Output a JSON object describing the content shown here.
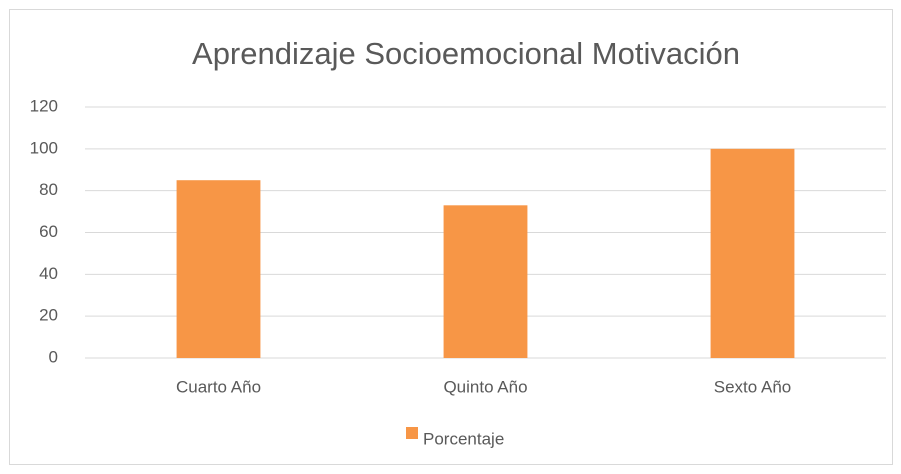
{
  "chart_data": {
    "type": "bar",
    "title": "Aprendizaje Socioemocional Motivación",
    "categories": [
      "Cuarto Año",
      "Quinto Año",
      "Sexto Año"
    ],
    "series": [
      {
        "name": "Porcentaje",
        "color": "#f79646",
        "values": [
          85,
          73,
          100
        ]
      }
    ],
    "ylim": [
      0,
      120
    ],
    "yticks": [
      0,
      20,
      40,
      60,
      80,
      100,
      120
    ],
    "grid": true,
    "legend": "bottom"
  }
}
